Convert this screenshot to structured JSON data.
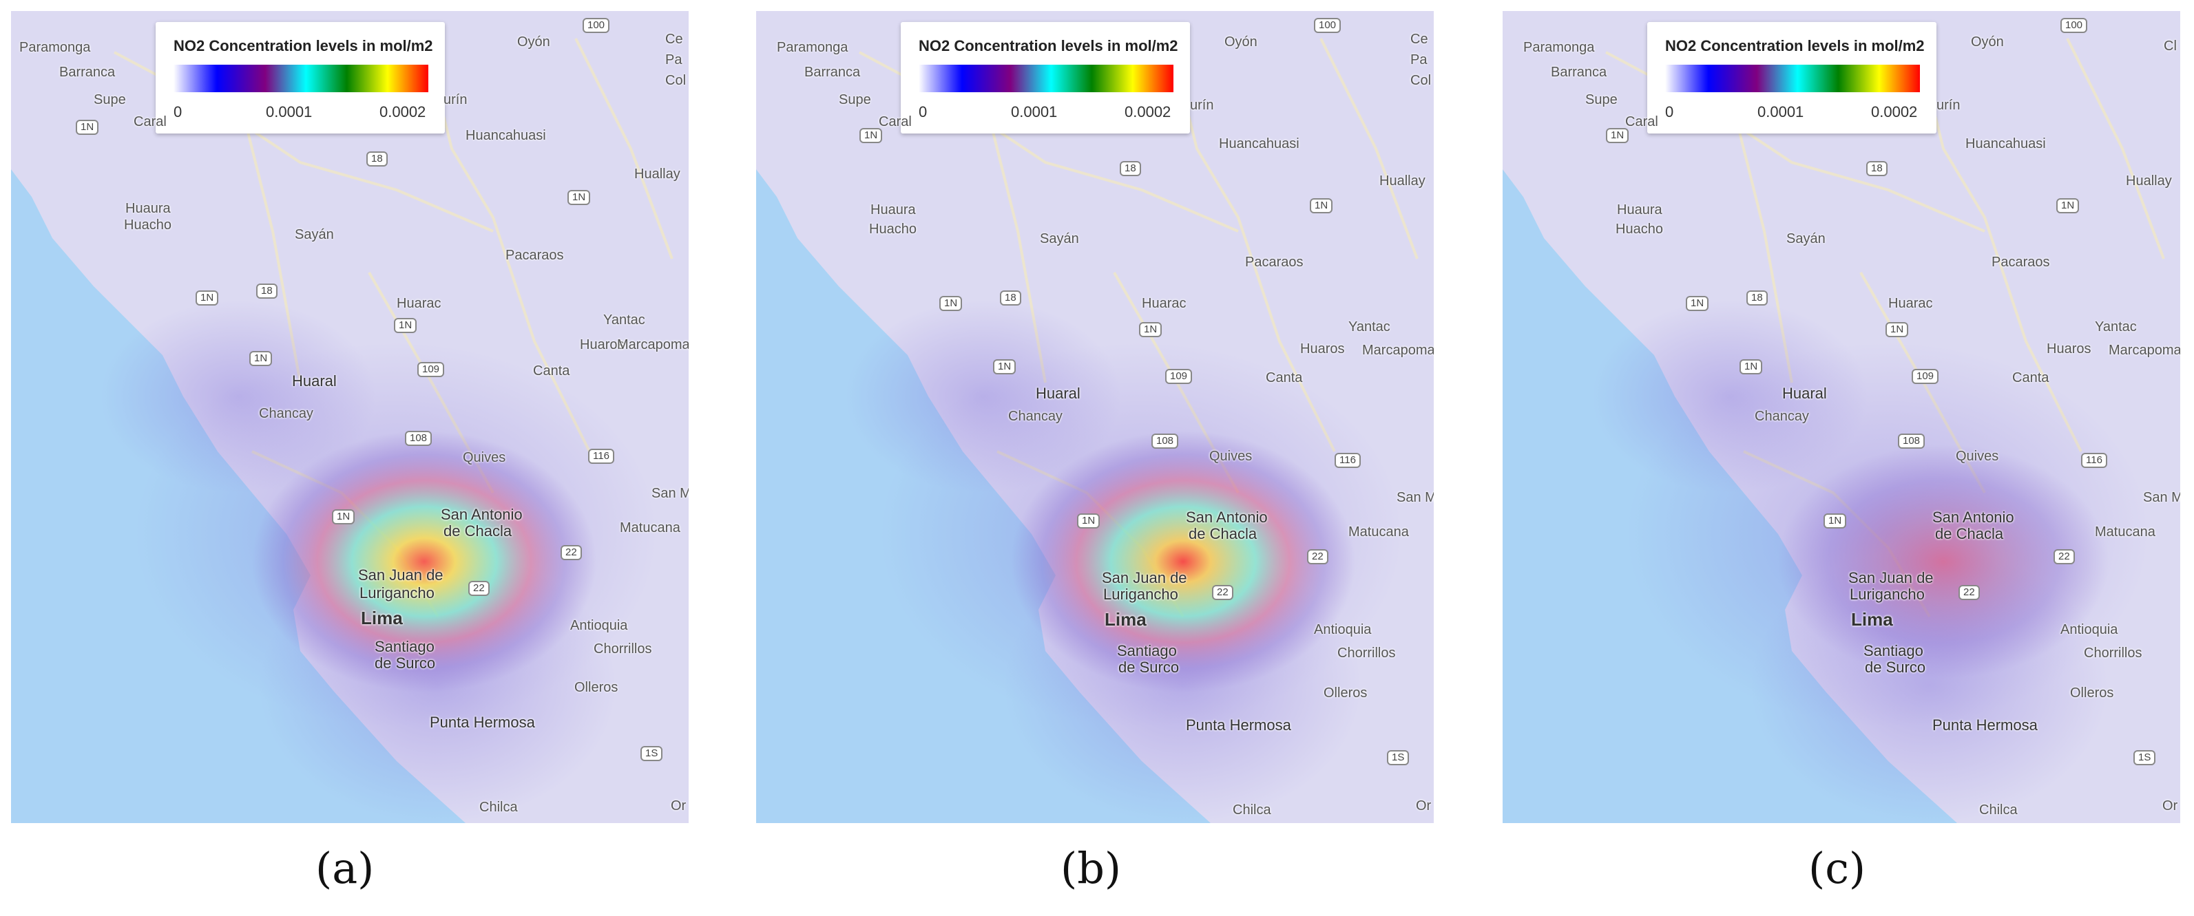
{
  "legend": {
    "title": "NO2 Concentration levels in mol/m2",
    "ticks": [
      "0",
      "0.0001",
      "0.0002"
    ]
  },
  "colors": {
    "sea": "#aad3f5",
    "land": "#dcdaf2",
    "ramp": [
      "#ffffff",
      "#0000ff",
      "#800080",
      "#00ffff",
      "#008000",
      "#ffff00",
      "#ff0000"
    ]
  },
  "places": {
    "paramonga": "Paramonga",
    "barranca": "Barranca",
    "supe": "Supe",
    "caral": "Caral",
    "oyon": "Oyón",
    "ce": "Ce",
    "pa": "Pa",
    "col": "Col",
    "rin": "urín",
    "huancahuasi": "Huancahuasi",
    "huallay": "Huallay",
    "huaura": "Huaura",
    "huacho": "Huacho",
    "sayan": "Sayán",
    "pacaraos": "Pacaraos",
    "huarac": "Huarac",
    "yantac": "Yantac",
    "huaros": "Huaros",
    "marcapoma": "Marcapoma",
    "canta": "Canta",
    "huaral": "Huaral",
    "chancay": "Chancay",
    "quives": "Quives",
    "sanantonio1": "San Antonio",
    "sanantonio2": "de Chacla",
    "sanm": "San M",
    "matucana": "Matucana",
    "sanjuan1": "San Juan de",
    "sanjuan2": "Lurigancho",
    "lima": "Lima",
    "antioquia": "Antioquia",
    "chorrillos": "Chorrillos",
    "santiago1": "Santiago",
    "santiago2": "de Surco",
    "olleros": "Olleros",
    "puntahermosa": "Punta Hermosa",
    "chilca": "Chilca",
    "or": "Or",
    "cl": "Cl"
  },
  "shields": {
    "r100": "100",
    "r1n": "1N",
    "r18": "18",
    "r109": "109",
    "r108": "108",
    "r116": "116",
    "r22": "22",
    "r1s": "1S"
  },
  "panels": [
    {
      "caption": "(a)",
      "hotspot_level": 0.0002
    },
    {
      "caption": "(b)",
      "hotspot_level": 0.0002
    },
    {
      "caption": "(c)",
      "hotspot_level": 0.0001
    }
  ]
}
